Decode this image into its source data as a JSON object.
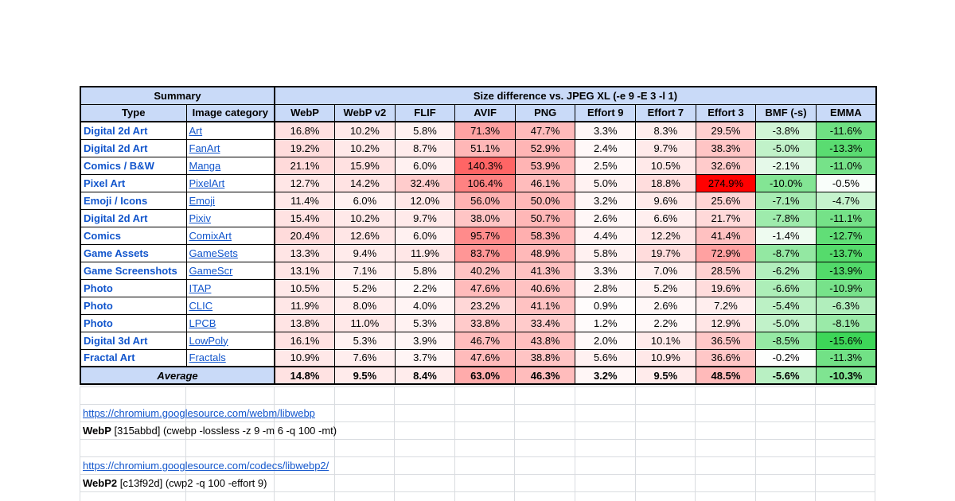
{
  "table": {
    "summary_header": "Summary",
    "size_header": "Size difference vs. JPEG XL (-e 9 -E 3 -l 1)",
    "columns": [
      "Type",
      "Image category",
      "WebP",
      "WebP v2",
      "FLIF",
      "AVIF",
      "PNG",
      "Effort 9",
      "Effort 7",
      "Effort 3",
      "BMF (-s)",
      "EMMA"
    ],
    "rows": [
      {
        "type": "Digital 2d Art",
        "category": "Art",
        "values": [
          "16.8%",
          "10.2%",
          "5.8%",
          "71.3%",
          "47.7%",
          "3.3%",
          "8.3%",
          "29.5%",
          "-3.8%",
          "-11.6%"
        ]
      },
      {
        "type": "Digital 2d Art",
        "category": "FanArt",
        "values": [
          "19.2%",
          "10.2%",
          "8.7%",
          "51.1%",
          "52.9%",
          "2.4%",
          "9.7%",
          "38.3%",
          "-5.0%",
          "-13.3%"
        ]
      },
      {
        "type": "Comics / B&W",
        "category": "Manga",
        "values": [
          "21.1%",
          "15.9%",
          "6.0%",
          "140.3%",
          "53.9%",
          "2.5%",
          "10.5%",
          "32.6%",
          "-2.1%",
          "-11.0%"
        ]
      },
      {
        "type": "Pixel Art",
        "category": "PixelArt",
        "values": [
          "12.7%",
          "14.2%",
          "32.4%",
          "106.4%",
          "46.1%",
          "5.0%",
          "18.8%",
          "274.9%",
          "-10.0%",
          "-0.5%"
        ]
      },
      {
        "type": "Emoji / Icons",
        "category": "Emoji",
        "values": [
          "11.4%",
          "6.0%",
          "12.0%",
          "56.0%",
          "50.0%",
          "3.2%",
          "9.6%",
          "25.6%",
          "-7.1%",
          "-4.7%"
        ]
      },
      {
        "type": "Digital 2d Art",
        "category": "Pixiv",
        "values": [
          "15.4%",
          "10.2%",
          "9.7%",
          "38.0%",
          "50.7%",
          "2.6%",
          "6.6%",
          "21.7%",
          "-7.8%",
          "-11.1%"
        ]
      },
      {
        "type": "Comics",
        "category": "ComixArt",
        "values": [
          "20.4%",
          "12.6%",
          "6.0%",
          "95.7%",
          "58.3%",
          "4.4%",
          "12.2%",
          "41.4%",
          "-1.4%",
          "-12.7%"
        ]
      },
      {
        "type": "Game Assets",
        "category": "GameSets",
        "values": [
          "13.3%",
          "9.4%",
          "11.9%",
          "83.7%",
          "48.9%",
          "5.8%",
          "19.7%",
          "72.9%",
          "-8.7%",
          "-13.7%"
        ]
      },
      {
        "type": "Game Screenshots",
        "category": "GameScr",
        "values": [
          "13.1%",
          "7.1%",
          "5.8%",
          "40.2%",
          "41.3%",
          "3.3%",
          "7.0%",
          "28.5%",
          "-6.2%",
          "-13.9%"
        ]
      },
      {
        "type": "Photo",
        "category": "ITAP",
        "values": [
          "10.5%",
          "5.2%",
          "2.2%",
          "47.6%",
          "40.6%",
          "2.8%",
          "5.2%",
          "19.6%",
          "-6.6%",
          "-10.9%"
        ]
      },
      {
        "type": "Photo",
        "category": "CLIC",
        "values": [
          "11.9%",
          "8.0%",
          "4.0%",
          "23.2%",
          "41.1%",
          "0.9%",
          "2.6%",
          "7.2%",
          "-5.4%",
          "-6.3%"
        ]
      },
      {
        "type": "Photo",
        "category": "LPCB",
        "values": [
          "13.8%",
          "11.0%",
          "5.3%",
          "33.8%",
          "33.4%",
          "1.2%",
          "2.2%",
          "12.9%",
          "-5.0%",
          "-8.1%"
        ]
      },
      {
        "type": "Digital 3d Art",
        "category": "LowPoly",
        "values": [
          "16.1%",
          "5.3%",
          "3.9%",
          "46.7%",
          "43.8%",
          "2.0%",
          "10.1%",
          "36.5%",
          "-8.5%",
          "-15.6%"
        ]
      },
      {
        "type": "Fractal Art",
        "category": "Fractals",
        "values": [
          "10.9%",
          "7.6%",
          "3.7%",
          "47.6%",
          "38.8%",
          "5.6%",
          "10.9%",
          "36.6%",
          "-0.2%",
          "-11.3%"
        ]
      }
    ],
    "average": {
      "label": "Average",
      "values": [
        "14.8%",
        "9.5%",
        "8.4%",
        "63.0%",
        "46.3%",
        "3.2%",
        "9.5%",
        "48.5%",
        "-5.6%",
        "-10.3%"
      ]
    }
  },
  "notes": [
    {
      "link": "https://chromium.googlesource.com/webm/libwebp",
      "label": "WebP",
      "detail": " [315abbd] (cwebp -lossless -z 9 -m 6 -q 100 -mt)"
    },
    {
      "link": "https://chromium.googlesource.com/codecs/libwebp2/",
      "label": "WebP2",
      "detail": " [c13f92d] (cwp2 -q 100 -effort 9)"
    }
  ],
  "colors": {
    "header_bg": "#c9daf8",
    "link": "#1155cc",
    "positive_extreme": "#ff0000",
    "negative_extreme": "#3dd658",
    "gridline": "#d9dce0"
  },
  "scale": {
    "positive_max": 274.9,
    "negative_max": 15.6
  }
}
